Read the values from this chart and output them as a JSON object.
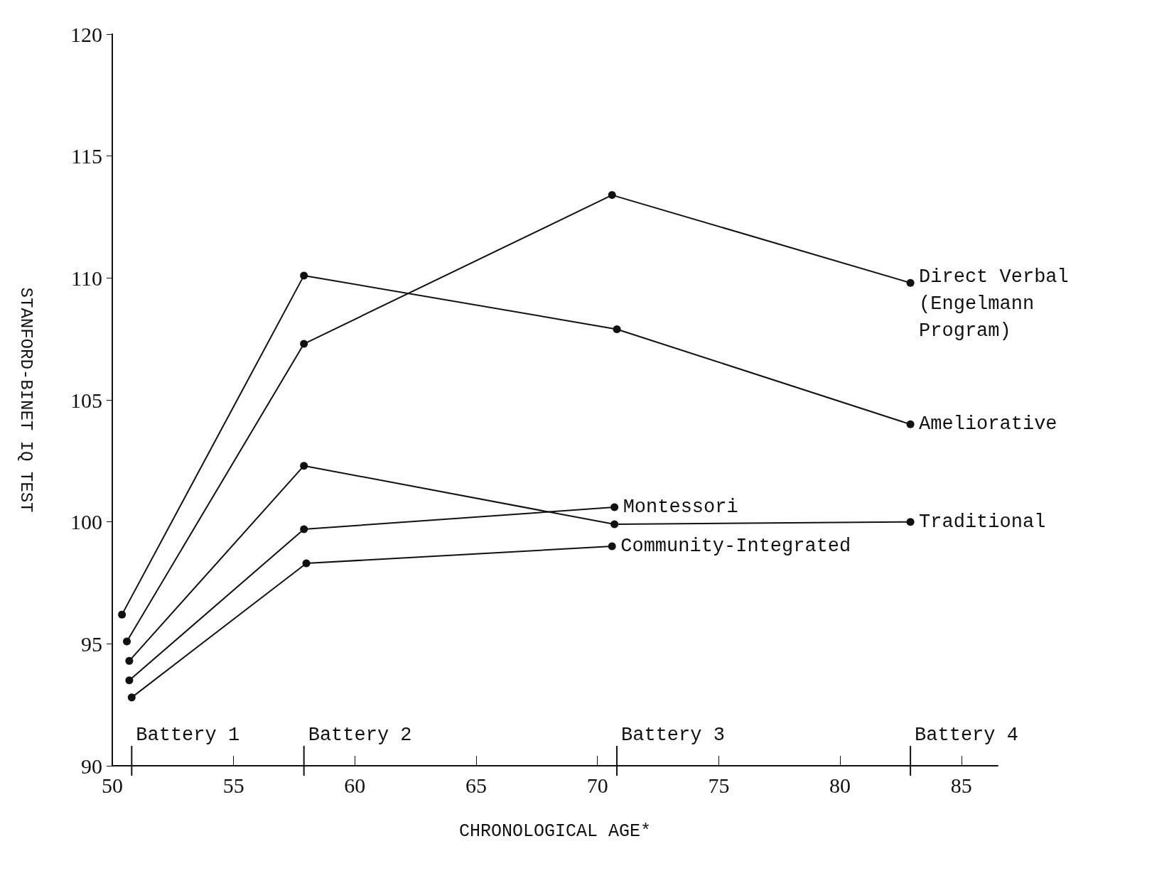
{
  "chart_data": {
    "type": "line",
    "xlabel": "CHRONOLOGICAL AGE*",
    "ylabel": "STANFORD-BINET IQ TEST",
    "xlim": [
      50,
      86.5
    ],
    "xticks": [
      50,
      55,
      60,
      65,
      70,
      75,
      80,
      85
    ],
    "ylim": [
      90,
      120
    ],
    "yticks": [
      90,
      95,
      100,
      105,
      110,
      115,
      120
    ],
    "grid": false,
    "legend": false,
    "marker": "circle",
    "line_style": "solid",
    "series": [
      {
        "name": "Direct Verbal\n(Engelmann\nProgram)",
        "color": "#111111",
        "x": [
          50.6,
          57.9,
          70.6,
          82.9
        ],
        "values": [
          95.1,
          107.3,
          113.4,
          109.8
        ]
      },
      {
        "name": "Ameliorative",
        "color": "#111111",
        "x": [
          50.4,
          57.9,
          70.8,
          82.9
        ],
        "values": [
          96.2,
          110.1,
          107.9,
          104.0
        ]
      },
      {
        "name": "Traditional",
        "color": "#111111",
        "x": [
          50.7,
          57.9,
          70.7,
          82.9
        ],
        "values": [
          94.3,
          102.3,
          99.9,
          100.0
        ]
      },
      {
        "name": "Montessori",
        "color": "#111111",
        "x": [
          50.7,
          57.9,
          70.7
        ],
        "values": [
          93.5,
          99.7,
          100.6
        ]
      },
      {
        "name": "Community-Integrated",
        "color": "#111111",
        "x": [
          50.8,
          58.0,
          70.6
        ],
        "values": [
          92.8,
          98.3,
          99.0
        ]
      }
    ],
    "ref_lines": [
      {
        "axis": "x",
        "value": 50.8,
        "label": "Battery 1"
      },
      {
        "axis": "x",
        "value": 57.9,
        "label": "Battery 2"
      },
      {
        "axis": "x",
        "value": 70.8,
        "label": "Battery 3"
      },
      {
        "axis": "x",
        "value": 82.9,
        "label": "Battery 4"
      }
    ]
  }
}
